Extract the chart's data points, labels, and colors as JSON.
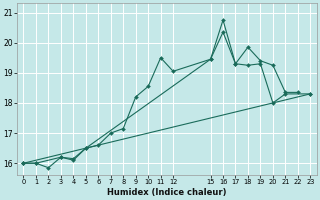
{
  "xlabel": "Humidex (Indice chaleur)",
  "background_color": "#c5e8e8",
  "grid_color": "#ffffff",
  "line_color": "#1a6b5a",
  "xlim": [
    -0.5,
    23.5
  ],
  "ylim": [
    15.6,
    21.3
  ],
  "xticks": [
    0,
    1,
    2,
    3,
    4,
    5,
    6,
    7,
    8,
    9,
    10,
    11,
    12,
    15,
    16,
    17,
    18,
    19,
    20,
    21,
    22,
    23
  ],
  "yticks": [
    16,
    17,
    18,
    19,
    20,
    21
  ],
  "series": [
    {
      "x": [
        0,
        1,
        2,
        3,
        4,
        5,
        6,
        7,
        8,
        9,
        10,
        11,
        12,
        15,
        16,
        17,
        18,
        19,
        20,
        21,
        22
      ],
      "y": [
        16.0,
        16.0,
        15.85,
        16.2,
        16.1,
        16.5,
        16.6,
        17.0,
        17.15,
        18.2,
        18.55,
        19.5,
        19.05,
        19.45,
        20.75,
        19.3,
        19.85,
        19.4,
        19.25,
        18.35,
        18.35
      ]
    },
    {
      "x": [
        0,
        1,
        3,
        4,
        5,
        15,
        16,
        17,
        18,
        19,
        20,
        21,
        23
      ],
      "y": [
        16.0,
        16.0,
        16.2,
        16.15,
        16.5,
        19.45,
        20.35,
        19.3,
        19.25,
        19.3,
        18.0,
        18.3,
        18.3
      ]
    },
    {
      "x": [
        0,
        23
      ],
      "y": [
        16.0,
        18.3
      ]
    }
  ]
}
